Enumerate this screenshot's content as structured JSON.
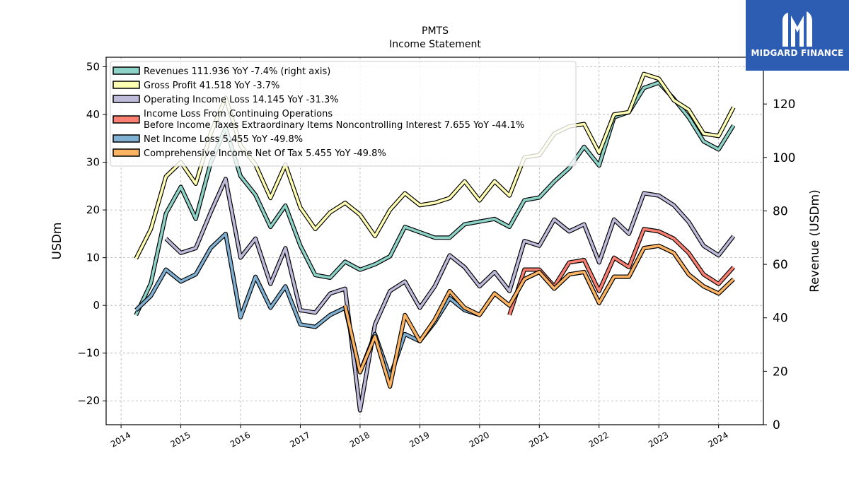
{
  "brand": {
    "name": "MIDGARD FINANCE",
    "logo": "midgard-m-logo-icon",
    "color": "#2d5db3"
  },
  "chart_data": {
    "type": "line",
    "title": "PMTS",
    "subtitle": "Income Statement",
    "ylabel": "USDm",
    "y2label": "Revenue (USDm)",
    "ylim": [
      -25,
      52
    ],
    "y2lim": [
      0,
      137.5
    ],
    "yticks": [
      -20,
      -10,
      0,
      10,
      20,
      30,
      40,
      50
    ],
    "y2ticks": [
      0,
      20,
      40,
      60,
      80,
      100,
      120
    ],
    "xlim": [
      2013.75,
      2024.75
    ],
    "xticks": [
      "2014",
      "2015",
      "2016",
      "2017",
      "2018",
      "2019",
      "2020",
      "2021",
      "2022",
      "2023",
      "2024"
    ],
    "grid": true,
    "legend_position": "top-left",
    "series": [
      {
        "name": "Revenues  111.936 YoY -7.4% (right axis)",
        "axis": "right",
        "color": "#8dd3c7",
        "x": [
          2014.25,
          2014.5,
          2014.75,
          2015.0,
          2015.25,
          2015.5,
          2015.75,
          2016.0,
          2016.25,
          2016.5,
          2016.75,
          2017.0,
          2017.25,
          2017.5,
          2017.75,
          2018.0,
          2018.25,
          2018.5,
          2018.75,
          2019.0,
          2019.25,
          2019.5,
          2019.75,
          2020.0,
          2020.25,
          2020.5,
          2020.75,
          2021.0,
          2021.25,
          2021.5,
          2021.75,
          2022.0,
          2022.25,
          2022.5,
          2022.75,
          2023.0,
          2023.25,
          2023.5,
          2023.75,
          2024.0,
          2024.25
        ],
        "values": [
          41,
          53,
          79,
          89,
          77,
          98,
          111,
          93,
          86,
          74,
          82,
          67,
          56,
          55,
          61,
          58,
          60,
          63,
          74,
          72,
          70,
          70,
          75,
          76,
          77,
          74,
          84,
          85,
          91,
          96,
          104,
          97,
          115,
          117,
          126,
          128,
          122,
          115,
          106,
          103,
          112
        ]
      },
      {
        "name": "Gross Profit  41.518 YoY -3.7%",
        "color": "#ffffb3",
        "x": [
          2014.25,
          2014.5,
          2014.75,
          2015.0,
          2015.25,
          2015.5,
          2015.75,
          2016.0,
          2016.25,
          2016.5,
          2016.75,
          2017.0,
          2017.25,
          2017.5,
          2017.75,
          2018.0,
          2018.25,
          2018.5,
          2018.75,
          2019.0,
          2019.25,
          2019.5,
          2019.75,
          2020.0,
          2020.25,
          2020.5,
          2020.75,
          2021.0,
          2021.25,
          2021.5,
          2021.75,
          2022.0,
          2022.25,
          2022.5,
          2022.75,
          2023.0,
          2023.25,
          2023.5,
          2023.75,
          2024.0,
          2024.25
        ],
        "values": [
          9.8,
          16,
          27,
          30,
          25.5,
          36,
          43.5,
          33.5,
          29.5,
          22.5,
          29.5,
          20.5,
          16,
          19.5,
          21.5,
          19,
          14.5,
          20,
          23.5,
          21,
          21.5,
          22.5,
          26,
          22,
          26,
          23,
          31,
          31.5,
          36,
          37.5,
          38,
          32,
          40,
          40.5,
          48.5,
          47.5,
          43,
          41,
          36,
          35.5,
          41.5
        ]
      },
      {
        "name": "Operating Income Loss  14.145 YoY -31.3%",
        "color": "#bebada",
        "x": [
          2014.75,
          2015.0,
          2015.25,
          2015.5,
          2015.75,
          2016.0,
          2016.25,
          2016.5,
          2016.75,
          2017.0,
          2017.25,
          2017.5,
          2017.75,
          2018.0,
          2018.25,
          2018.5,
          2018.75,
          2019.0,
          2019.25,
          2019.5,
          2019.75,
          2020.0,
          2020.25,
          2020.5,
          2020.75,
          2021.0,
          2021.25,
          2021.5,
          2021.75,
          2022.0,
          2022.25,
          2022.5,
          2022.75,
          2023.0,
          2023.25,
          2023.5,
          2023.75,
          2024.0,
          2024.25
        ],
        "values": [
          14,
          11,
          12,
          19.5,
          26.5,
          10,
          14,
          4.5,
          12,
          -1,
          -1.5,
          2.5,
          3.5,
          -22,
          -4,
          3,
          5,
          -0.5,
          4,
          10.5,
          8,
          4,
          7,
          3,
          13.5,
          12.5,
          18,
          15.5,
          17,
          9,
          18,
          15,
          23.5,
          23,
          21,
          17.5,
          12.5,
          10.5,
          14.5
        ]
      },
      {
        "name": "Income Loss From Continuing Operations\nBefore Income Taxes Extraordinary Items Noncontrolling Interest  7.655 YoY -44.1%",
        "color": "#fb8072",
        "x": [
          2020.5,
          2020.75,
          2021.0,
          2021.25,
          2021.5,
          2021.75,
          2022.0,
          2022.25,
          2022.5,
          2022.75,
          2023.0,
          2023.25,
          2023.5,
          2023.75,
          2024.0,
          2024.25
        ],
        "values": [
          -2,
          7.5,
          7.5,
          4,
          9,
          9.5,
          3,
          10,
          8,
          16,
          15.5,
          14,
          11,
          6.5,
          4.5,
          8
        ]
      },
      {
        "name": "Net Income Loss  5.455 YoY -49.8%",
        "color": "#80b1d3",
        "x": [
          2014.25,
          2014.5,
          2014.75,
          2015.0,
          2015.25,
          2015.5,
          2015.75,
          2016.0,
          2016.25,
          2016.5,
          2016.75,
          2017.0,
          2017.25,
          2017.5,
          2017.75,
          2018.0,
          2018.25,
          2018.5,
          2018.75,
          2019.0,
          2019.25,
          2019.5,
          2019.75,
          2020.0,
          2020.25,
          2020.5,
          2020.75,
          2021.0,
          2021.25,
          2021.5,
          2021.75,
          2022.0,
          2022.25,
          2022.5,
          2022.75,
          2023.0,
          2023.25,
          2023.5,
          2023.75,
          2024.0,
          2024.25
        ],
        "values": [
          -1,
          2,
          7.5,
          5,
          6.5,
          12,
          15,
          -2.5,
          6,
          -0.5,
          4,
          -4,
          -4.5,
          -2,
          -0.5,
          -14,
          -6,
          -15,
          -6,
          -7.5,
          -3.5,
          1.5,
          -1,
          -2,
          2.5,
          0,
          5.5,
          7,
          3.5,
          6.5,
          7,
          0.5,
          6,
          6,
          12,
          12.5,
          11,
          6.5,
          4,
          2.5,
          5.5
        ]
      },
      {
        "name": "Comprehensive Income Net Of Tax  5.455 YoY -49.8%",
        "color": "#fdb462",
        "x": [
          2017.75,
          2018.0,
          2018.25,
          2018.5,
          2018.75,
          2019.0,
          2019.25,
          2019.5,
          2019.75,
          2020.0,
          2020.25,
          2020.5,
          2020.75,
          2021.0,
          2021.25,
          2021.5,
          2021.75,
          2022.0,
          2022.25,
          2022.5,
          2022.75,
          2023.0,
          2023.25,
          2023.5,
          2023.75,
          2024.0,
          2024.25
        ],
        "values": [
          0,
          -14,
          -6.5,
          -17,
          -2,
          -7.5,
          -3,
          3,
          -0.5,
          -2,
          2.5,
          0,
          5.5,
          7,
          3.5,
          6.5,
          7,
          0.5,
          6,
          6,
          12,
          12.5,
          11,
          6.5,
          4,
          2.5,
          5.5
        ]
      }
    ]
  }
}
